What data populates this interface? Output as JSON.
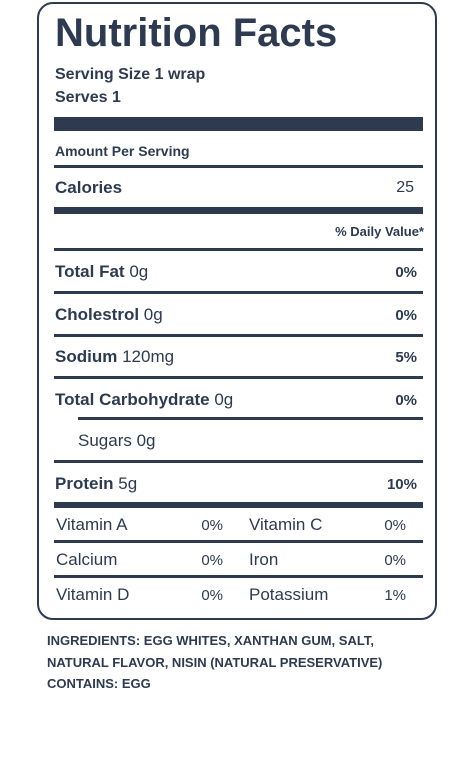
{
  "title": "Nutrition Facts",
  "serving_size": "Serving Size 1 wrap",
  "serves": "Serves 1",
  "amount_per_serving": "Amount Per Serving",
  "calories": {
    "label": "Calories",
    "value": 25
  },
  "daily_value_header": "% Daily Value*",
  "nutrients": [
    {
      "name": "Total Fat",
      "amount": "0g",
      "daily_value": "0%"
    },
    {
      "name": "Cholestrol",
      "amount": "0g",
      "daily_value": "0%"
    },
    {
      "name": "Sodium",
      "amount": "120mg",
      "daily_value": "5%"
    },
    {
      "name": "Total Carbohydrate",
      "amount": "0g",
      "daily_value": "0%"
    }
  ],
  "sugars": "Sugars 0g",
  "protein": {
    "name": "Protein",
    "amount": "5g",
    "daily_value": "10%"
  },
  "vitamins": [
    [
      {
        "name": "Vitamin A",
        "value": "0%"
      },
      {
        "name": "Vitamin C",
        "value": "0%"
      }
    ],
    [
      {
        "name": "Calcium",
        "value": "0%"
      },
      {
        "name": "Iron",
        "value": "0%"
      }
    ],
    [
      {
        "name": "Vitamin D",
        "value": "0%"
      },
      {
        "name": "Potassium",
        "value": "1%"
      }
    ]
  ],
  "ingredients": [
    "INGREDIENTS: EGG WHITES, XANTHAN GUM, SALT,",
    "NATURAL FLAVOR, NISIN (NATURAL PRESERVATIVE)",
    "CONTAINS: EGG"
  ]
}
